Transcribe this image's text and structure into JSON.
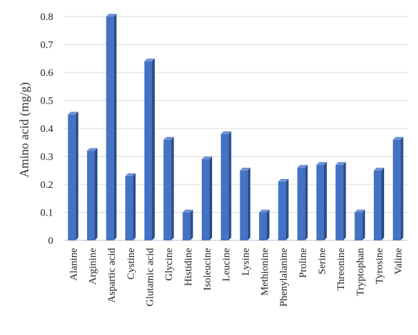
{
  "chart_data": {
    "type": "bar",
    "title": "",
    "xlabel": "",
    "ylabel": "Amino acid (mg/g)",
    "ylim": [
      0,
      0.8
    ],
    "yticks": [
      "0",
      "0.1",
      "0.2",
      "0.3",
      "0.4",
      "0.5",
      "0.6",
      "0.7",
      "0.8"
    ],
    "grid": true,
    "legend": "none",
    "bar_color": "#4472c4",
    "bar_side_color": "#2b4d8c",
    "bar_top_color": "#6c93d8",
    "categories": [
      "Alanine",
      "Arginine",
      "Aspartic acid",
      "Cystine",
      "Glutamic acid",
      "Glycine",
      "Histidine",
      "Isoleucine",
      "Leucine",
      "Lysine",
      "Methionine",
      "Phenylalanine",
      "Proline",
      "Serine",
      "Threonine",
      "Tryptophan",
      "Tyrosine",
      "Valine"
    ],
    "values": [
      0.45,
      0.32,
      0.8,
      0.23,
      0.64,
      0.36,
      0.1,
      0.29,
      0.38,
      0.25,
      0.1,
      0.21,
      0.26,
      0.27,
      0.27,
      0.1,
      0.25,
      0.36
    ]
  }
}
